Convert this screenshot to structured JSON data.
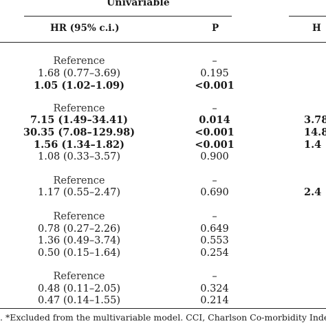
{
  "table": {
    "group_header": "Univariable",
    "columns": {
      "hr": "HR (95% c.i.)",
      "p": "P",
      "mv_partial": "H"
    },
    "rows": [
      {
        "hr": "Reference",
        "p": "–",
        "mv": "",
        "bold": false
      },
      {
        "hr": "1.68 (0.77–3.69)",
        "p": "0.195",
        "mv": "",
        "bold": false
      },
      {
        "hr": "1.05 (1.02–1.09)",
        "p": "<0.001",
        "mv": "",
        "bold": true
      },
      {
        "hr": "Reference",
        "p": "–",
        "mv": "",
        "bold": false
      },
      {
        "hr": "7.15 (1.49–34.41)",
        "p": "0.014",
        "mv": "3.78",
        "bold": true
      },
      {
        "hr": "30.35 (7.08–129.98)",
        "p": "<0.001",
        "mv": "14.8",
        "bold": true
      },
      {
        "hr": "1.56 (1.34–1.82)",
        "p": "<0.001",
        "mv": "1.4",
        "bold": true
      },
      {
        "hr": "1.08 (0.33–3.57)",
        "p": "0.900",
        "mv": "",
        "bold": false
      },
      {
        "hr": "Reference",
        "p": "–",
        "mv": "",
        "bold": false
      },
      {
        "hr": "1.17 (0.55–2.47)",
        "p": "0.690",
        "mv": "2.4",
        "bold": false
      },
      {
        "hr": "Reference",
        "p": "–",
        "mv": "",
        "bold": false
      },
      {
        "hr": "0.78 (0.27–2.26)",
        "p": "0.649",
        "mv": "",
        "bold": false
      },
      {
        "hr": "1.36 (0.49–3.74)",
        "p": "0.553",
        "mv": "",
        "bold": false
      },
      {
        "hr": "0.50 (0.15–1.64)",
        "p": "0.254",
        "mv": "",
        "bold": false
      },
      {
        "hr": "Reference",
        "p": "–",
        "mv": "",
        "bold": false
      },
      {
        "hr": "0.48 (0.11–2.05)",
        "p": "0.324",
        "mv": "",
        "bold": false
      },
      {
        "hr": "0.47 (0.14–1.55)",
        "p": "0.214",
        "mv": "",
        "bold": false
      }
    ],
    "footnote": ". *Excluded from the multivariable model. CCI, Charlson Co-morbidity Index; a"
  }
}
